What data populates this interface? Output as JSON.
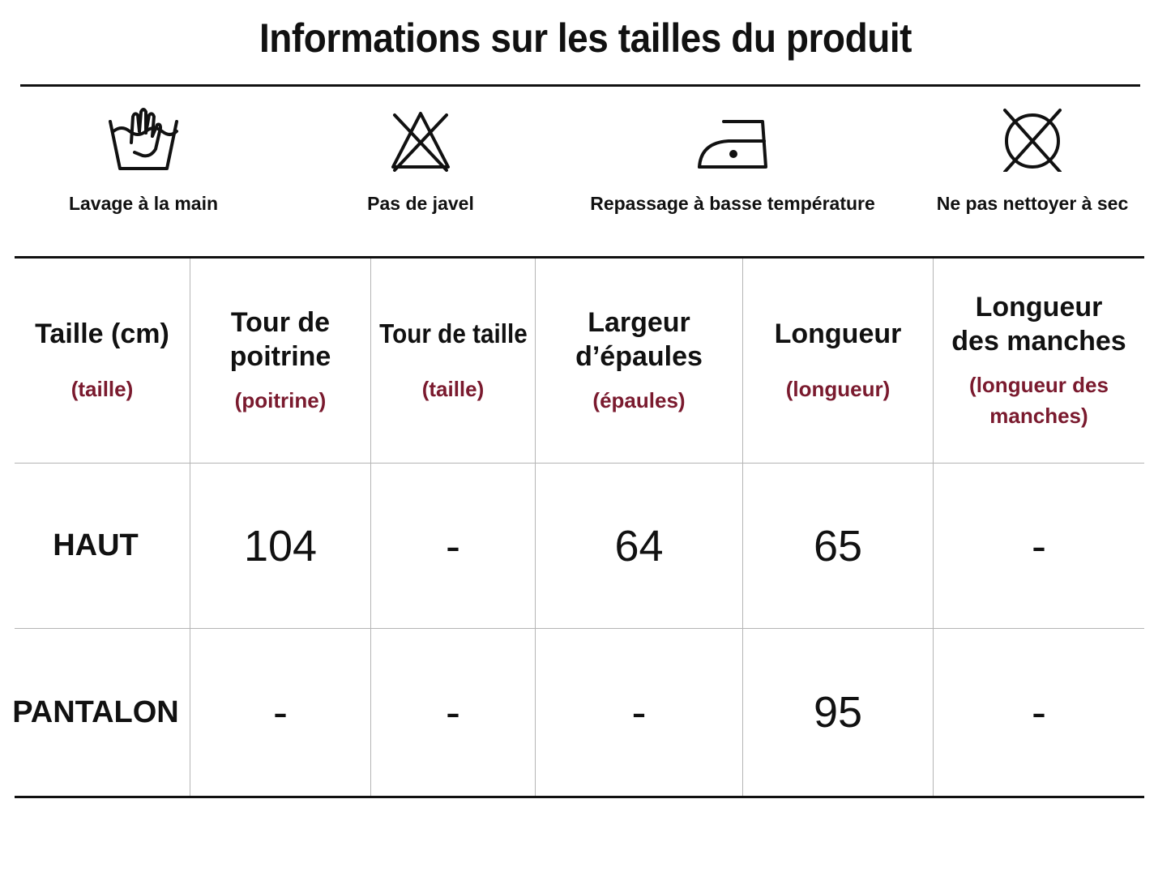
{
  "title": "Informations sur les tailles du produit",
  "care": [
    {
      "label": "Lavage à la main",
      "icon": "hand-wash-icon"
    },
    {
      "label": "Pas de javel",
      "icon": "no-bleach-icon"
    },
    {
      "label": "Repassage à basse température",
      "icon": "iron-low-icon"
    },
    {
      "label": "Ne pas nettoyer à sec",
      "icon": "no-dry-clean-icon"
    }
  ],
  "table": {
    "headers": [
      {
        "title": "Taille (cm)",
        "sub": "(taille)"
      },
      {
        "title": "Tour de poitrine",
        "sub": "(poitrine)"
      },
      {
        "title": "Tour de taille",
        "sub": "(taille)"
      },
      {
        "title": "Largeur d’épaules",
        "sub": "(épaules)"
      },
      {
        "title": "Longueur",
        "sub": "(longueur)"
      },
      {
        "title": "Longueur des manches",
        "sub": "(longueur des manches)"
      }
    ],
    "rows": [
      {
        "label": "HAUT",
        "values": [
          "104",
          "-",
          "64",
          "65",
          "-"
        ]
      },
      {
        "label": "PANTALON",
        "values": [
          "-",
          "-",
          "-",
          "95",
          "-"
        ]
      }
    ]
  },
  "colors": {
    "subtitle": "#7a1a2e",
    "text": "#111111",
    "grid": "#b5b5b5"
  }
}
